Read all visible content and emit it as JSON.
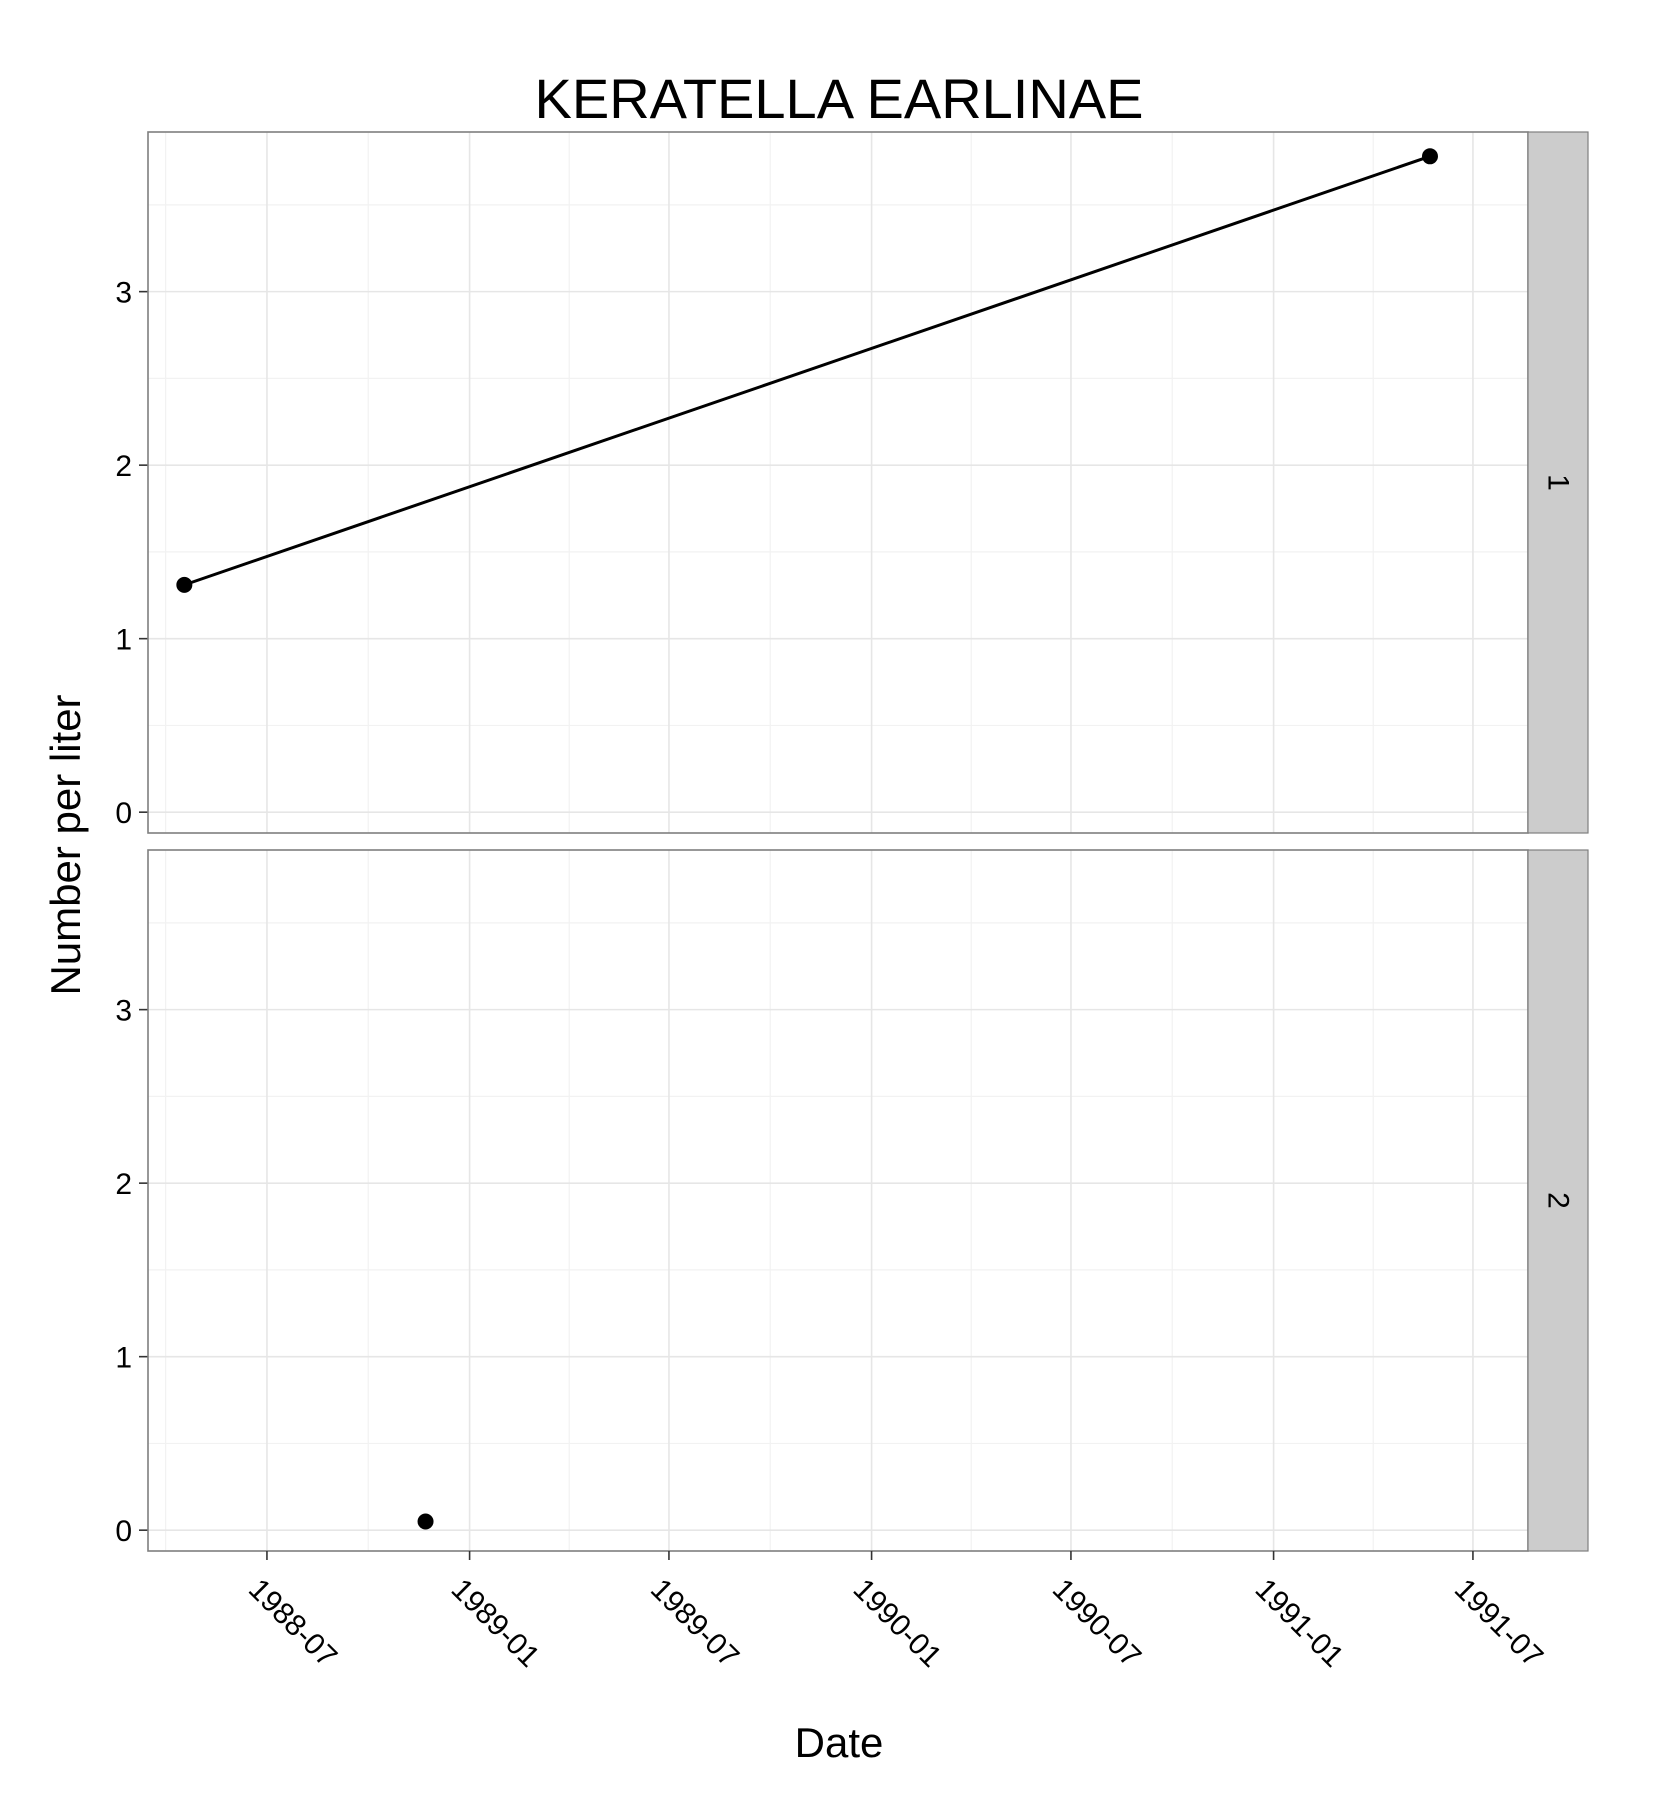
{
  "chart_data": {
    "type": "line",
    "title": "KERATELLA EARLINAE",
    "xlabel": "Date",
    "ylabel": "Number per liter",
    "x_axis_type": "date",
    "xlim": [
      "1988-03-15",
      "1991-08-20"
    ],
    "ylim": [
      -0.12,
      3.92
    ],
    "x_ticks": [
      "1988-07",
      "1989-01",
      "1989-07",
      "1990-01",
      "1990-07",
      "1991-01",
      "1991-07"
    ],
    "y_ticks": [
      0,
      1,
      2,
      3
    ],
    "grid": true,
    "facet_direction": "vertical",
    "panels": [
      {
        "strip_label": "1",
        "series": [
          {
            "points": [
              {
                "x": "1988-04-17",
                "y": 1.31
              },
              {
                "x": "1991-05-23",
                "y": 3.78
              }
            ],
            "connected": true
          }
        ]
      },
      {
        "strip_label": "2",
        "series": [
          {
            "points": [
              {
                "x": "1988-11-22",
                "y": 0.05
              }
            ],
            "connected": false
          }
        ]
      }
    ]
  }
}
